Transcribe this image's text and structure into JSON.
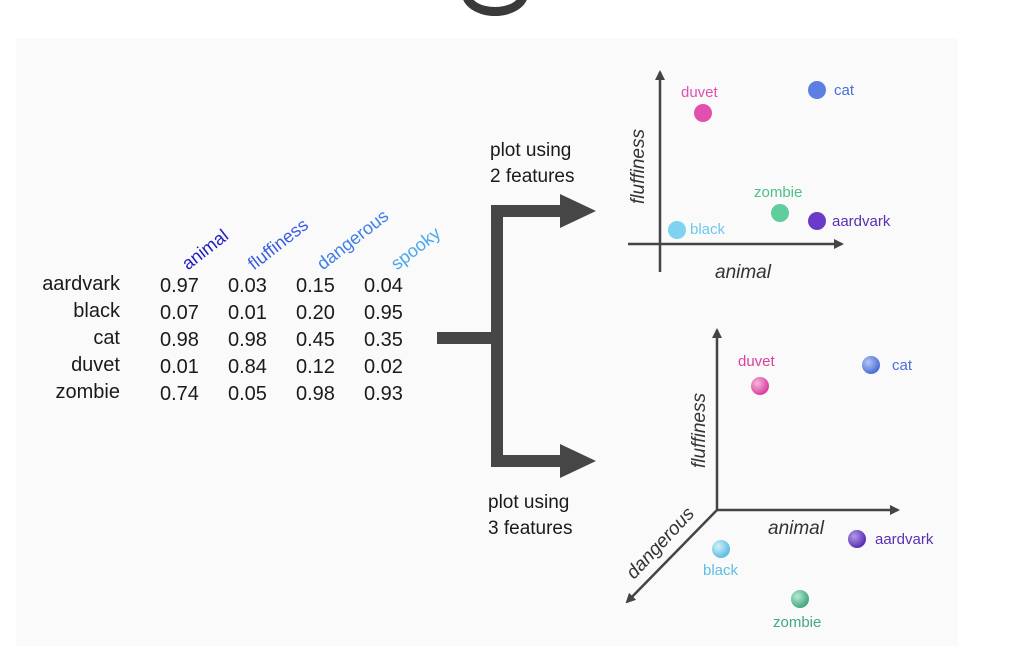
{
  "table": {
    "columns": [
      {
        "label": "animal",
        "color": "#1f1fbf"
      },
      {
        "label": "fluffiness",
        "color": "#3b5fe0"
      },
      {
        "label": "dangerous",
        "color": "#3f7fe8"
      },
      {
        "label": "spooky",
        "color": "#4aa8ee"
      }
    ],
    "rows": [
      {
        "label": "aardvark",
        "values": [
          "0.97",
          "0.03",
          "0.15",
          "0.04"
        ]
      },
      {
        "label": "black",
        "values": [
          "0.07",
          "0.01",
          "0.20",
          "0.95"
        ]
      },
      {
        "label": "cat",
        "values": [
          "0.98",
          "0.98",
          "0.45",
          "0.35"
        ]
      },
      {
        "label": "duvet",
        "values": [
          "0.01",
          "0.84",
          "0.12",
          "0.02"
        ]
      },
      {
        "label": "zombie",
        "values": [
          "0.74",
          "0.05",
          "0.98",
          "0.93"
        ]
      }
    ]
  },
  "arrows": {
    "top_line1": "plot using",
    "top_line2": "2 features",
    "bottom_line1": "plot using",
    "bottom_line2": "3 features"
  },
  "plot2d": {
    "xlabel": "animal",
    "ylabel": "fluffiness",
    "points": [
      {
        "label": "duvet",
        "color": "#e24fae"
      },
      {
        "label": "cat",
        "color": "#5b7fe3"
      },
      {
        "label": "zombie",
        "color": "#5ecf9c"
      },
      {
        "label": "black",
        "color": "#7fd3f0"
      },
      {
        "label": "aardvark",
        "color": "#6a3bc9"
      }
    ]
  },
  "plot3d": {
    "xlabel": "animal",
    "ylabel": "fluffiness",
    "zlabel": "dangerous",
    "points": [
      {
        "label": "duvet",
        "color": "#d9409f"
      },
      {
        "label": "cat",
        "color": "#4a6fd6"
      },
      {
        "label": "aardvark",
        "color": "#5a2fb5"
      },
      {
        "label": "black",
        "color": "#5fbde3"
      },
      {
        "label": "zombie",
        "color": "#46a880"
      }
    ]
  }
}
